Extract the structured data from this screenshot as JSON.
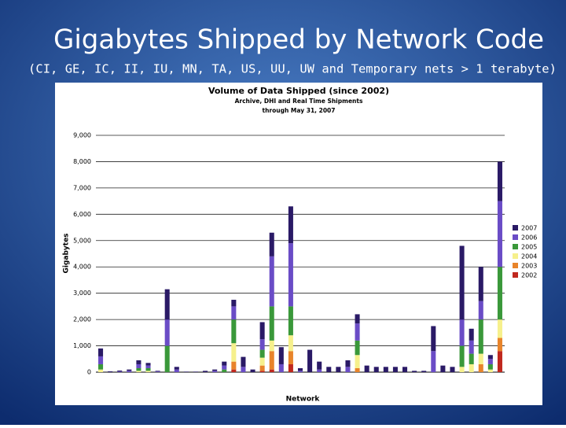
{
  "slide": {
    "title": "Gigabytes Shipped by Network Code",
    "subtitle": "(CI, GE, IC, II, IU, MN, TA, US, UU, UW and Temporary nets > 1 terabyte)"
  },
  "chart_data": {
    "type": "stacked_bar",
    "title": "Volume of Data Shipped (since 2002)",
    "subtitle": [
      "Archive, DHI and Real Time Shipments",
      "through May 31, 2007"
    ],
    "x_label": "Network",
    "y_label": "Gigabytes",
    "categories": [
      null,
      null,
      null,
      null,
      null,
      null,
      null,
      null,
      null,
      null,
      null,
      null,
      null,
      null,
      null,
      null,
      null,
      null,
      null,
      null,
      null,
      null,
      null,
      null,
      null,
      null,
      null,
      null,
      null,
      null,
      null,
      null,
      null,
      null,
      null,
      null,
      null,
      null,
      null,
      null,
      null,
      null,
      null
    ],
    "ylim": [
      0,
      9000
    ],
    "yticks": [
      0,
      {
        "value": 1000,
        "label": "1,000"
      },
      {
        "value": 2000,
        "label": "2,000"
      },
      {
        "value": 3000,
        "label": "3,000"
      },
      {
        "value": 4000,
        "label": "4,000"
      },
      {
        "value": 5000,
        "label": "5,000"
      },
      {
        "value": 6000,
        "label": "6,000"
      },
      {
        "value": 7000,
        "label": "7,000"
      },
      {
        "value": 8000,
        "label": "8,000"
      },
      {
        "value": 9000,
        "label": "9,000"
      }
    ],
    "grid": true,
    "legend": "right",
    "series": [
      {
        "name": "2002",
        "color": "#c0281e",
        "values": [
          0,
          0,
          0,
          0,
          0,
          0,
          0,
          0,
          0,
          0,
          0,
          0,
          0,
          0,
          100,
          0,
          0,
          50,
          100,
          0,
          300,
          0,
          0,
          0,
          0,
          0,
          0,
          0,
          0,
          0,
          0,
          0,
          0,
          0,
          0,
          0,
          0,
          0,
          0,
          0,
          0,
          0,
          800
        ]
      },
      {
        "name": "2003",
        "color": "#e8842a",
        "values": [
          0,
          0,
          0,
          0,
          0,
          0,
          0,
          0,
          0,
          0,
          0,
          0,
          0,
          0,
          300,
          0,
          0,
          200,
          700,
          0,
          500,
          0,
          0,
          0,
          0,
          0,
          0,
          150,
          0,
          0,
          0,
          0,
          0,
          0,
          0,
          0,
          0,
          0,
          0,
          0,
          300,
          0,
          500
        ]
      },
      {
        "name": "2004",
        "color": "#f6f08c",
        "values": [
          100,
          0,
          0,
          0,
          50,
          50,
          0,
          0,
          0,
          0,
          0,
          0,
          0,
          0,
          700,
          0,
          0,
          300,
          400,
          0,
          600,
          0,
          0,
          0,
          0,
          0,
          0,
          500,
          0,
          0,
          0,
          0,
          0,
          0,
          0,
          0,
          0,
          0,
          200,
          300,
          400,
          100,
          700
        ]
      },
      {
        "name": "2005",
        "color": "#3a983a",
        "values": [
          200,
          0,
          0,
          0,
          100,
          100,
          0,
          1000,
          0,
          0,
          0,
          0,
          0,
          100,
          900,
          0,
          0,
          300,
          1300,
          0,
          1100,
          0,
          0,
          0,
          0,
          0,
          0,
          550,
          0,
          0,
          0,
          0,
          0,
          0,
          0,
          0,
          0,
          0,
          800,
          400,
          1300,
          200,
          2000
        ]
      },
      {
        "name": "2006",
        "color": "#6a4cc6",
        "values": [
          300,
          0,
          20,
          50,
          150,
          100,
          20,
          1000,
          100,
          0,
          0,
          0,
          50,
          150,
          500,
          200,
          0,
          400,
          1900,
          300,
          2400,
          50,
          0,
          100,
          0,
          0,
          200,
          650,
          0,
          0,
          0,
          0,
          0,
          0,
          0,
          800,
          0,
          0,
          1000,
          500,
          700,
          200,
          2500
        ]
      },
      {
        "name": "2007",
        "color": "#2a1a66",
        "values": [
          300,
          30,
          40,
          50,
          150,
          100,
          30,
          1150,
          100,
          20,
          20,
          50,
          50,
          150,
          250,
          380,
          100,
          650,
          900,
          650,
          1400,
          100,
          850,
          300,
          200,
          200,
          250,
          350,
          250,
          200,
          200,
          200,
          200,
          50,
          50,
          950,
          250,
          200,
          2800,
          450,
          1300,
          150,
          1500
        ]
      }
    ]
  }
}
